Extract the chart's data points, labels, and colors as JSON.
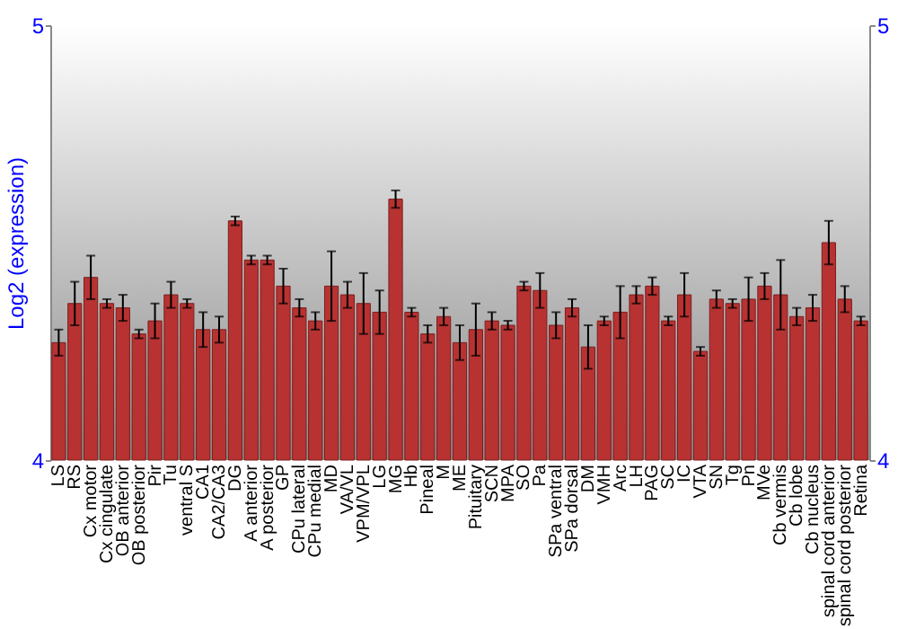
{
  "chart_data": {
    "type": "bar",
    "ylabel": "Log2 (expression)",
    "categories": [
      "LS",
      "RS",
      "Cx motor",
      "Cx cingulate",
      "OB anterior",
      "OB posterior",
      "Pir",
      "Tu",
      "ventral S",
      "CA1",
      "CA2/CA3",
      "DG",
      "A anterior",
      "A posterior",
      "GP",
      "CPu lateral",
      "CPu medial",
      "MD",
      "VA/VL",
      "VPM/VPL",
      "LG",
      "MG",
      "Hb",
      "Pineal",
      "M",
      "ME",
      "Pituitary",
      "SCN",
      "MPA",
      "SO",
      "Pa",
      "SPa ventral",
      "SPa dorsal",
      "DM",
      "VMH",
      "Arc",
      "LH",
      "PAG",
      "SC",
      "IC",
      "VTA",
      "SN",
      "Tg",
      "Pn",
      "MVe",
      "Cb vermis",
      "Cb lobe",
      "Cb nucleus",
      "spinal cord anterior",
      "spinal cord posterior",
      "Retina"
    ],
    "values": [
      4.27,
      4.36,
      4.42,
      4.36,
      4.35,
      4.29,
      4.32,
      4.38,
      4.36,
      4.3,
      4.3,
      4.55,
      4.46,
      4.46,
      4.4,
      4.35,
      4.32,
      4.4,
      4.38,
      4.36,
      4.34,
      4.6,
      4.34,
      4.29,
      4.33,
      4.27,
      4.3,
      4.32,
      4.31,
      4.4,
      4.39,
      4.31,
      4.35,
      4.26,
      4.32,
      4.34,
      4.38,
      4.4,
      4.32,
      4.38,
      4.25,
      4.37,
      4.36,
      4.37,
      4.4,
      4.38,
      4.33,
      4.35,
      4.5,
      4.37,
      4.32
    ],
    "errors": [
      0.03,
      0.05,
      0.05,
      0.01,
      0.03,
      0.01,
      0.04,
      0.03,
      0.01,
      0.04,
      0.03,
      0.01,
      0.01,
      0.01,
      0.04,
      0.02,
      0.02,
      0.08,
      0.03,
      0.07,
      0.05,
      0.02,
      0.01,
      0.02,
      0.02,
      0.04,
      0.06,
      0.02,
      0.01,
      0.01,
      0.04,
      0.03,
      0.02,
      0.05,
      0.01,
      0.06,
      0.02,
      0.02,
      0.01,
      0.05,
      0.01,
      0.02,
      0.01,
      0.05,
      0.03,
      0.08,
      0.02,
      0.03,
      0.05,
      0.03,
      0.01
    ],
    "color": "#b83232",
    "ylim": [
      4,
      5
    ],
    "yticks": [
      4,
      5
    ],
    "y2lim": [
      4,
      5
    ],
    "y2ticks": [
      4,
      5
    ],
    "grid": false
  }
}
